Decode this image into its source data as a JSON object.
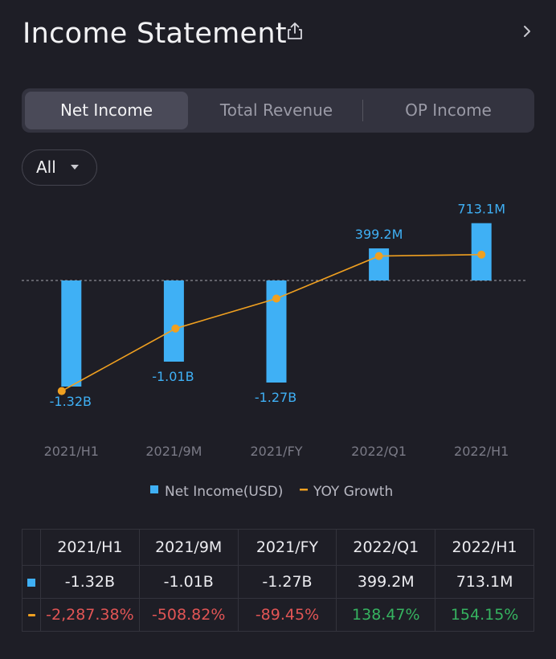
{
  "header": {
    "title": "Income Statement"
  },
  "tabs": [
    {
      "label": "Net Income",
      "active": true
    },
    {
      "label": "Total Revenue",
      "active": false
    },
    {
      "label": "OP Income",
      "active": false
    }
  ],
  "filter": {
    "selected": "All"
  },
  "colors": {
    "bar": "#3fb0f5",
    "line": "#f0a020",
    "negative": "#e25555",
    "positive": "#36b360"
  },
  "chart_data": {
    "type": "bar",
    "categories": [
      "2021/H1",
      "2021/9M",
      "2021/FY",
      "2022/Q1",
      "2022/H1"
    ],
    "series": [
      {
        "name": "Net Income(USD)",
        "type": "bar",
        "values": [
          -1.32,
          -1.01,
          -1.27,
          0.3992,
          0.7131
        ],
        "unit": "B",
        "labels": [
          "-1.32B",
          "-1.01B",
          "-1.27B",
          "399.2M",
          "713.1M"
        ]
      },
      {
        "name": "YOY Growth",
        "type": "line",
        "values": [
          -2287.38,
          -508.82,
          -89.45,
          138.47,
          154.15
        ],
        "unit": "%"
      }
    ],
    "legend": [
      "Net Income(USD)",
      "YOY Growth"
    ],
    "legend_position": "bottom"
  },
  "table": {
    "columns": [
      "2021/H1",
      "2021/9M",
      "2021/FY",
      "2022/Q1",
      "2022/H1"
    ],
    "income_row": [
      "-1.32B",
      "-1.01B",
      "-1.27B",
      "399.2M",
      "713.1M"
    ],
    "growth_row": [
      "-2,287.38%",
      "-508.82%",
      "-89.45%",
      "138.47%",
      "154.15%"
    ]
  }
}
